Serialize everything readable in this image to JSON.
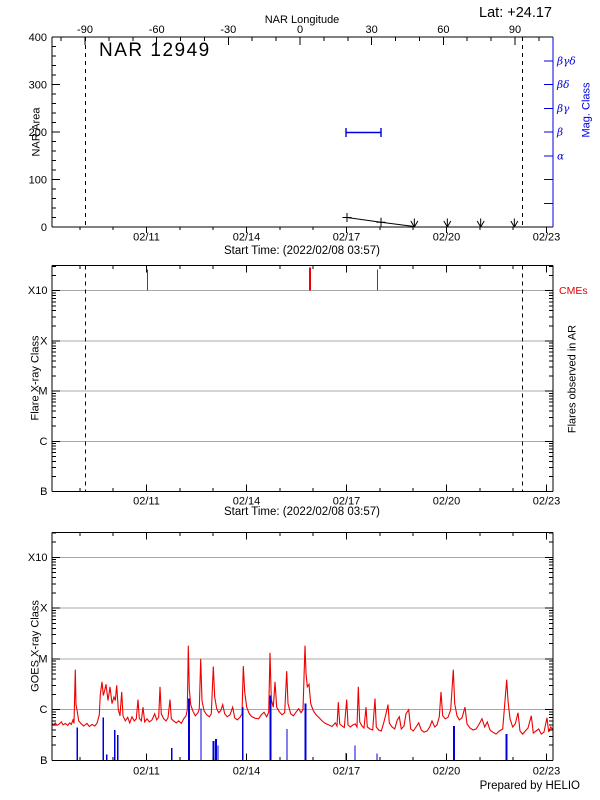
{
  "labels": {
    "title": "NAR 12949",
    "lat": "Lat: +24.17",
    "nar_longitude": "NAR Longitude",
    "nar_area": "NAR Area",
    "mag_class": "Mag. Class",
    "flare_xray": "Flare X-ray Class",
    "flares_in_ar": "Flares observed in AR",
    "cmes": "CMEs",
    "goes_xray": "GOES X-ray Class",
    "start_time": "Start Time: (2022/02/08 03:57)",
    "prepared_by": "Prepared by HELIO"
  },
  "colors": {
    "blue": "#0000dd",
    "red": "#ee0000",
    "grid_gray": "#a8a8a8",
    "black": "#000000"
  },
  "time_axis": {
    "start_label": "Start Time: (2022/02/08 03:57)",
    "tick_labels": [
      "02/11",
      "02/14",
      "02/17",
      "02/20",
      "02/23"
    ],
    "tick_days": [
      2.8354,
      5.8354,
      8.8354,
      11.8354,
      14.8354
    ],
    "first_minor_day": 0.8354,
    "minor_interval_days": 1,
    "range_days": [
      0,
      15.03
    ]
  },
  "chart_data": [
    {
      "id": "nar_area_panel",
      "type": "line",
      "title": "NAR 12949",
      "lat_annotation": "Lat: +24.17",
      "top_axis": {
        "label": "NAR Longitude",
        "ticks": [
          -90,
          -60,
          -30,
          0,
          30,
          60,
          90
        ],
        "minor_step": 10,
        "range": [
          -105.5,
          105.5
        ]
      },
      "y_axis": {
        "label": "NAR Area",
        "ticks": [
          0,
          100,
          200,
          300,
          400
        ],
        "minor_step": 20,
        "range": [
          0,
          400
        ]
      },
      "right_axis": {
        "label": "Mag. Class",
        "tick_values": [
          350,
          300,
          250,
          200,
          150,
          100,
          50
        ],
        "tick_labels": [
          "βγδ",
          "βδ",
          "βγ",
          "β",
          "α",
          "",
          ""
        ]
      },
      "limb_lines_days": [
        1.01,
        14.11
      ],
      "area_series": {
        "marker": "plus",
        "points_day_area": [
          [
            8.85,
            20
          ],
          [
            9.87,
            10
          ],
          [
            10.87,
            1
          ]
        ]
      },
      "zero_arrow_days": [
        10.87,
        11.86,
        12.86,
        13.87
      ],
      "mag_segment": {
        "mag_class": "β",
        "area_equiv": 200,
        "start_day": 8.82,
        "end_day": 9.87
      }
    },
    {
      "id": "flare_panel",
      "type": "event-timeline",
      "y_axis": {
        "label": "Flare X-ray Class",
        "tick_labels": [
          "X10",
          "X",
          "M",
          "C",
          "B"
        ],
        "tick_decades": [
          4,
          3,
          2,
          1,
          0
        ],
        "range_decades": [
          0,
          4.5
        ]
      },
      "right_label": "Flares observed in AR",
      "grid_decades": [
        1,
        2,
        3,
        4
      ],
      "limb_lines_days": [
        1.01,
        14.11
      ],
      "cme_label": "CMEs",
      "cme_ticks_day_width": [
        [
          2.87,
          1
        ],
        [
          7.74,
          2
        ],
        [
          9.76,
          1
        ]
      ],
      "flare_events": []
    },
    {
      "id": "goes_panel",
      "type": "line",
      "y_axis": {
        "label": "GOES X-ray Class",
        "tick_labels": [
          "X10",
          "X",
          "M",
          "C",
          "B"
        ],
        "tick_decades": [
          4,
          3,
          2,
          1,
          0
        ],
        "range_decades": [
          0,
          4.49
        ]
      },
      "grid_decades": [
        1,
        2,
        3,
        4
      ],
      "xray_series": {
        "name": "GOES X-ray flux",
        "color": "#ee0000",
        "points_day_logdecade": [
          [
            0.0,
            0.73
          ],
          [
            0.05,
            0.7
          ],
          [
            0.1,
            0.74
          ],
          [
            0.15,
            0.69
          ],
          [
            0.22,
            0.72
          ],
          [
            0.28,
            0.76
          ],
          [
            0.33,
            0.7
          ],
          [
            0.4,
            0.73
          ],
          [
            0.47,
            0.69
          ],
          [
            0.53,
            0.74
          ],
          [
            0.58,
            0.71
          ],
          [
            0.63,
            0.8
          ],
          [
            0.66,
            0.73
          ],
          [
            0.7,
            1.79
          ],
          [
            0.72,
            1.1
          ],
          [
            0.76,
            0.96
          ],
          [
            0.8,
            0.78
          ],
          [
            0.88,
            0.72
          ],
          [
            0.95,
            0.68
          ],
          [
            1.05,
            0.73
          ],
          [
            1.12,
            0.67
          ],
          [
            1.2,
            0.71
          ],
          [
            1.28,
            0.68
          ],
          [
            1.35,
            0.73
          ],
          [
            1.42,
            0.9
          ],
          [
            1.45,
            1.3
          ],
          [
            1.5,
            1.55
          ],
          [
            1.54,
            1.28
          ],
          [
            1.58,
            1.38
          ],
          [
            1.62,
            1.5
          ],
          [
            1.68,
            1.18
          ],
          [
            1.74,
            1.45
          ],
          [
            1.8,
            1.12
          ],
          [
            1.86,
            1.25
          ],
          [
            1.9,
            1.18
          ],
          [
            1.94,
            1.48
          ],
          [
            1.99,
            1.0
          ],
          [
            2.04,
            0.88
          ],
          [
            2.09,
            1.35
          ],
          [
            2.13,
            0.88
          ],
          [
            2.2,
            0.78
          ],
          [
            2.27,
            0.85
          ],
          [
            2.33,
            0.74
          ],
          [
            2.4,
            0.86
          ],
          [
            2.47,
            0.78
          ],
          [
            2.53,
            0.82
          ],
          [
            2.58,
            1.2
          ],
          [
            2.62,
            0.83
          ],
          [
            2.68,
            0.78
          ],
          [
            2.73,
            1.05
          ],
          [
            2.78,
            0.76
          ],
          [
            2.85,
            0.82
          ],
          [
            2.92,
            0.76
          ],
          [
            3.0,
            0.8
          ],
          [
            3.08,
            0.92
          ],
          [
            3.14,
            0.8
          ],
          [
            3.2,
            0.85
          ],
          [
            3.24,
            1.45
          ],
          [
            3.28,
            0.92
          ],
          [
            3.35,
            0.82
          ],
          [
            3.42,
            0.78
          ],
          [
            3.48,
            0.84
          ],
          [
            3.54,
            1.2
          ],
          [
            3.58,
            0.82
          ],
          [
            3.65,
            0.78
          ],
          [
            3.73,
            0.74
          ],
          [
            3.8,
            0.78
          ],
          [
            3.88,
            0.73
          ],
          [
            3.95,
            0.82
          ],
          [
            4.02,
            0.88
          ],
          [
            4.06,
            1.0
          ],
          [
            4.09,
            2.26
          ],
          [
            4.12,
            1.4
          ],
          [
            4.16,
            1.1
          ],
          [
            4.22,
            0.98
          ],
          [
            4.3,
            0.88
          ],
          [
            4.38,
            0.94
          ],
          [
            4.42,
            1.02
          ],
          [
            4.46,
            2.0
          ],
          [
            4.5,
            1.18
          ],
          [
            4.56,
            0.98
          ],
          [
            4.64,
            0.9
          ],
          [
            4.72,
            0.86
          ],
          [
            4.78,
            0.92
          ],
          [
            4.84,
            1.85
          ],
          [
            4.88,
            1.25
          ],
          [
            4.94,
            1.02
          ],
          [
            5.0,
            0.94
          ],
          [
            5.06,
            0.98
          ],
          [
            5.12,
            1.1
          ],
          [
            5.18,
            0.92
          ],
          [
            5.26,
            0.86
          ],
          [
            5.34,
            0.9
          ],
          [
            5.42,
            1.05
          ],
          [
            5.48,
            0.84
          ],
          [
            5.56,
            0.8
          ],
          [
            5.64,
            0.85
          ],
          [
            5.7,
            0.92
          ],
          [
            5.74,
            1.86
          ],
          [
            5.78,
            1.35
          ],
          [
            5.84,
            1.05
          ],
          [
            5.92,
            0.92
          ],
          [
            6.0,
            0.86
          ],
          [
            6.1,
            0.83
          ],
          [
            6.2,
            0.82
          ],
          [
            6.28,
            0.9
          ],
          [
            6.36,
            0.95
          ],
          [
            6.44,
            0.86
          ],
          [
            6.5,
            0.95
          ],
          [
            6.54,
            2.12
          ],
          [
            6.58,
            1.2
          ],
          [
            6.64,
            1.05
          ],
          [
            6.69,
            1.55
          ],
          [
            6.74,
            1.05
          ],
          [
            6.82,
            0.96
          ],
          [
            6.9,
            0.9
          ],
          [
            6.98,
            0.94
          ],
          [
            7.04,
            1.76
          ],
          [
            7.08,
            1.12
          ],
          [
            7.16,
            0.92
          ],
          [
            7.24,
            0.88
          ],
          [
            7.32,
            0.95
          ],
          [
            7.4,
            1.02
          ],
          [
            7.47,
            0.94
          ],
          [
            7.53,
            1.0
          ],
          [
            7.59,
            2.26
          ],
          [
            7.62,
            1.72
          ],
          [
            7.66,
            1.45
          ],
          [
            7.71,
            1.5
          ],
          [
            7.76,
            1.12
          ],
          [
            7.84,
            0.98
          ],
          [
            7.92,
            0.9
          ],
          [
            8.0,
            0.85
          ],
          [
            8.1,
            0.78
          ],
          [
            8.2,
            0.73
          ],
          [
            8.3,
            0.7
          ],
          [
            8.4,
            0.67
          ],
          [
            8.5,
            0.74
          ],
          [
            8.55,
            0.68
          ],
          [
            8.59,
            1.15
          ],
          [
            8.63,
            0.72
          ],
          [
            8.7,
            0.68
          ],
          [
            8.77,
            0.65
          ],
          [
            8.84,
            1.2
          ],
          [
            8.88,
            0.7
          ],
          [
            8.95,
            0.66
          ],
          [
            9.03,
            0.7
          ],
          [
            9.1,
            0.72
          ],
          [
            9.15,
            0.66
          ],
          [
            9.19,
            1.45
          ],
          [
            9.23,
            0.76
          ],
          [
            9.3,
            0.68
          ],
          [
            9.36,
            0.64
          ],
          [
            9.42,
            1.05
          ],
          [
            9.46,
            0.66
          ],
          [
            9.54,
            0.62
          ],
          [
            9.62,
            0.6
          ],
          [
            9.69,
            1.22
          ],
          [
            9.73,
            0.66
          ],
          [
            9.8,
            0.6
          ],
          [
            9.88,
            0.58
          ],
          [
            9.95,
            0.74
          ],
          [
            10.02,
            0.92
          ],
          [
            10.08,
            1.1
          ],
          [
            10.12,
            0.74
          ],
          [
            10.2,
            0.66
          ],
          [
            10.28,
            0.62
          ],
          [
            10.36,
            0.8
          ],
          [
            10.42,
            0.86
          ],
          [
            10.48,
            0.62
          ],
          [
            10.56,
            0.68
          ],
          [
            10.62,
            0.92
          ],
          [
            10.7,
            1.0
          ],
          [
            10.76,
            0.62
          ],
          [
            10.84,
            0.58
          ],
          [
            10.92,
            0.66
          ],
          [
            11.0,
            0.74
          ],
          [
            11.08,
            0.6
          ],
          [
            11.16,
            0.56
          ],
          [
            11.25,
            0.58
          ],
          [
            11.33,
            0.66
          ],
          [
            11.4,
            0.78
          ],
          [
            11.48,
            0.66
          ],
          [
            11.55,
            0.7
          ],
          [
            11.62,
            0.86
          ],
          [
            11.67,
            1.35
          ],
          [
            11.72,
            0.88
          ],
          [
            11.8,
            0.82
          ],
          [
            11.88,
            0.85
          ],
          [
            11.96,
            1.0
          ],
          [
            12.04,
            1.79
          ],
          [
            12.08,
            1.12
          ],
          [
            12.15,
            0.88
          ],
          [
            12.22,
            0.8
          ],
          [
            12.3,
            0.84
          ],
          [
            12.39,
            1.05
          ],
          [
            12.45,
            0.72
          ],
          [
            12.54,
            0.64
          ],
          [
            12.63,
            0.6
          ],
          [
            12.72,
            0.62
          ],
          [
            12.8,
            0.7
          ],
          [
            12.9,
            0.82
          ],
          [
            12.98,
            0.66
          ],
          [
            13.06,
            0.76
          ],
          [
            13.14,
            0.6
          ],
          [
            13.22,
            0.56
          ],
          [
            13.32,
            0.52
          ],
          [
            13.42,
            0.58
          ],
          [
            13.52,
            0.62
          ],
          [
            13.64,
            1.59
          ],
          [
            13.68,
            1.18
          ],
          [
            13.74,
            0.82
          ],
          [
            13.82,
            0.66
          ],
          [
            13.9,
            0.72
          ],
          [
            13.98,
            0.94
          ],
          [
            14.04,
            0.58
          ],
          [
            14.12,
            0.52
          ],
          [
            14.2,
            0.58
          ],
          [
            14.28,
            0.64
          ],
          [
            14.38,
            0.88
          ],
          [
            14.44,
            0.54
          ],
          [
            14.52,
            0.58
          ],
          [
            14.6,
            0.62
          ],
          [
            14.68,
            0.52
          ],
          [
            14.76,
            0.56
          ],
          [
            14.85,
            0.84
          ],
          [
            14.9,
            0.56
          ],
          [
            14.96,
            0.66
          ],
          [
            15.03,
            0.6
          ]
        ]
      },
      "spike_series": {
        "name": "secondary channel",
        "color": "#0000dd",
        "style": "vertical-spikes",
        "spikes_day_logdecade_width": [
          [
            0.76,
            0.65,
            1
          ],
          [
            1.54,
            0.85,
            1
          ],
          [
            1.64,
            0.12,
            1
          ],
          [
            1.88,
            0.6,
            1
          ],
          [
            1.97,
            0.5,
            1
          ],
          [
            3.59,
            0.25,
            1
          ],
          [
            4.11,
            1.22,
            2
          ],
          [
            4.47,
            1.02,
            1
          ],
          [
            4.85,
            0.38,
            2
          ],
          [
            4.92,
            0.42,
            2
          ],
          [
            4.98,
            0.3,
            1
          ],
          [
            5.72,
            1.05,
            1
          ],
          [
            6.56,
            1.28,
            2
          ],
          [
            7.05,
            0.62,
            1
          ],
          [
            7.61,
            1.12,
            2
          ],
          [
            8.82,
            0.15,
            1
          ],
          [
            9.09,
            0.3,
            1
          ],
          [
            9.75,
            0.14,
            1
          ],
          [
            12.06,
            0.68,
            2
          ],
          [
            13.64,
            0.52,
            2
          ]
        ]
      }
    }
  ]
}
